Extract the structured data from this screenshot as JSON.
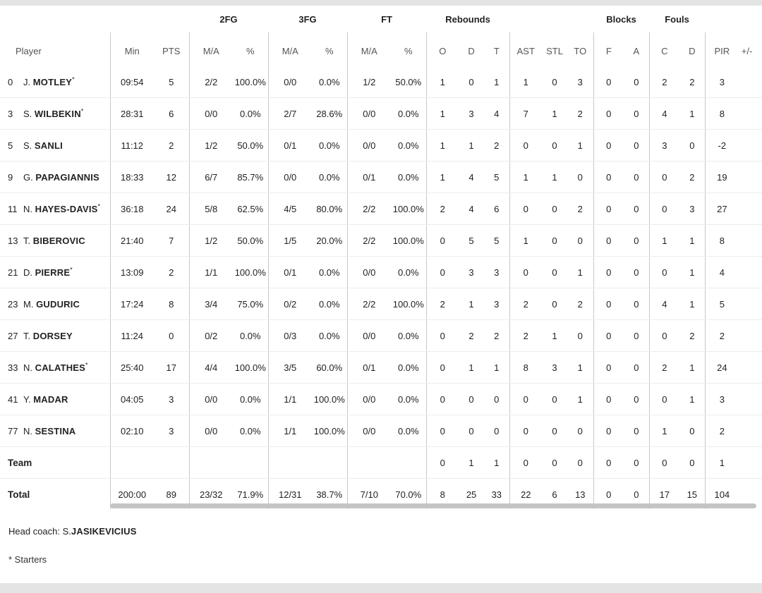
{
  "groups": {
    "fg2": "2FG",
    "fg3": "3FG",
    "ft": "FT",
    "rebounds": "Rebounds",
    "blocks": "Blocks",
    "fouls": "Fouls"
  },
  "columns": {
    "player": "Player",
    "min": "Min",
    "pts": "PTS",
    "fg2_ma": "M/A",
    "fg2_pct": "%",
    "fg3_ma": "M/A",
    "fg3_pct": "%",
    "ft_ma": "M/A",
    "ft_pct": "%",
    "reb_o": "O",
    "reb_d": "D",
    "reb_t": "T",
    "ast": "AST",
    "stl": "STL",
    "to": "TO",
    "blk_f": "F",
    "blk_a": "A",
    "foul_c": "C",
    "foul_d": "D",
    "pir": "PIR",
    "plus_minus": "+/-"
  },
  "players": [
    {
      "num": "0",
      "init": "J.",
      "last": "MOTLEY",
      "star": "*",
      "min": "09:54",
      "pts": "5",
      "fg2_ma": "2/2",
      "fg2_pct": "100.0%",
      "fg3_ma": "0/0",
      "fg3_pct": "0.0%",
      "ft_ma": "1/2",
      "ft_pct": "50.0%",
      "o": "1",
      "d": "0",
      "t": "1",
      "ast": "1",
      "stl": "0",
      "to": "3",
      "bf": "0",
      "ba": "0",
      "fc": "2",
      "fd": "2",
      "pir": "3"
    },
    {
      "num": "3",
      "init": "S.",
      "last": "WILBEKIN",
      "star": "*",
      "min": "28:31",
      "pts": "6",
      "fg2_ma": "0/0",
      "fg2_pct": "0.0%",
      "fg3_ma": "2/7",
      "fg3_pct": "28.6%",
      "ft_ma": "0/0",
      "ft_pct": "0.0%",
      "o": "1",
      "d": "3",
      "t": "4",
      "ast": "7",
      "stl": "1",
      "to": "2",
      "bf": "0",
      "ba": "0",
      "fc": "4",
      "fd": "1",
      "pir": "8"
    },
    {
      "num": "5",
      "init": "S.",
      "last": "SANLI",
      "star": "",
      "min": "11:12",
      "pts": "2",
      "fg2_ma": "1/2",
      "fg2_pct": "50.0%",
      "fg3_ma": "0/1",
      "fg3_pct": "0.0%",
      "ft_ma": "0/0",
      "ft_pct": "0.0%",
      "o": "1",
      "d": "1",
      "t": "2",
      "ast": "0",
      "stl": "0",
      "to": "1",
      "bf": "0",
      "ba": "0",
      "fc": "3",
      "fd": "0",
      "pir": "-2"
    },
    {
      "num": "9",
      "init": "G.",
      "last": "PAPAGIANNIS",
      "star": "",
      "min": "18:33",
      "pts": "12",
      "fg2_ma": "6/7",
      "fg2_pct": "85.7%",
      "fg3_ma": "0/0",
      "fg3_pct": "0.0%",
      "ft_ma": "0/1",
      "ft_pct": "0.0%",
      "o": "1",
      "d": "4",
      "t": "5",
      "ast": "1",
      "stl": "1",
      "to": "0",
      "bf": "0",
      "ba": "0",
      "fc": "0",
      "fd": "2",
      "pir": "19"
    },
    {
      "num": "11",
      "init": "N.",
      "last": "HAYES-DAVIS",
      "star": "*",
      "min": "36:18",
      "pts": "24",
      "fg2_ma": "5/8",
      "fg2_pct": "62.5%",
      "fg3_ma": "4/5",
      "fg3_pct": "80.0%",
      "ft_ma": "2/2",
      "ft_pct": "100.0%",
      "o": "2",
      "d": "4",
      "t": "6",
      "ast": "0",
      "stl": "0",
      "to": "2",
      "bf": "0",
      "ba": "0",
      "fc": "0",
      "fd": "3",
      "pir": "27"
    },
    {
      "num": "13",
      "init": "T.",
      "last": "BIBEROVIC",
      "star": "",
      "min": "21:40",
      "pts": "7",
      "fg2_ma": "1/2",
      "fg2_pct": "50.0%",
      "fg3_ma": "1/5",
      "fg3_pct": "20.0%",
      "ft_ma": "2/2",
      "ft_pct": "100.0%",
      "o": "0",
      "d": "5",
      "t": "5",
      "ast": "1",
      "stl": "0",
      "to": "0",
      "bf": "0",
      "ba": "0",
      "fc": "1",
      "fd": "1",
      "pir": "8"
    },
    {
      "num": "21",
      "init": "D.",
      "last": "PIERRE",
      "star": "*",
      "min": "13:09",
      "pts": "2",
      "fg2_ma": "1/1",
      "fg2_pct": "100.0%",
      "fg3_ma": "0/1",
      "fg3_pct": "0.0%",
      "ft_ma": "0/0",
      "ft_pct": "0.0%",
      "o": "0",
      "d": "3",
      "t": "3",
      "ast": "0",
      "stl": "0",
      "to": "1",
      "bf": "0",
      "ba": "0",
      "fc": "0",
      "fd": "1",
      "pir": "4"
    },
    {
      "num": "23",
      "init": "M.",
      "last": "GUDURIC",
      "star": "",
      "min": "17:24",
      "pts": "8",
      "fg2_ma": "3/4",
      "fg2_pct": "75.0%",
      "fg3_ma": "0/2",
      "fg3_pct": "0.0%",
      "ft_ma": "2/2",
      "ft_pct": "100.0%",
      "o": "2",
      "d": "1",
      "t": "3",
      "ast": "2",
      "stl": "0",
      "to": "2",
      "bf": "0",
      "ba": "0",
      "fc": "4",
      "fd": "1",
      "pir": "5"
    },
    {
      "num": "27",
      "init": "T.",
      "last": "DORSEY",
      "star": "",
      "min": "11:24",
      "pts": "0",
      "fg2_ma": "0/2",
      "fg2_pct": "0.0%",
      "fg3_ma": "0/3",
      "fg3_pct": "0.0%",
      "ft_ma": "0/0",
      "ft_pct": "0.0%",
      "o": "0",
      "d": "2",
      "t": "2",
      "ast": "2",
      "stl": "1",
      "to": "0",
      "bf": "0",
      "ba": "0",
      "fc": "0",
      "fd": "2",
      "pir": "2"
    },
    {
      "num": "33",
      "init": "N.",
      "last": "CALATHES",
      "star": "*",
      "min": "25:40",
      "pts": "17",
      "fg2_ma": "4/4",
      "fg2_pct": "100.0%",
      "fg3_ma": "3/5",
      "fg3_pct": "60.0%",
      "ft_ma": "0/1",
      "ft_pct": "0.0%",
      "o": "0",
      "d": "1",
      "t": "1",
      "ast": "8",
      "stl": "3",
      "to": "1",
      "bf": "0",
      "ba": "0",
      "fc": "2",
      "fd": "1",
      "pir": "24"
    },
    {
      "num": "41",
      "init": "Y.",
      "last": "MADAR",
      "star": "",
      "min": "04:05",
      "pts": "3",
      "fg2_ma": "0/0",
      "fg2_pct": "0.0%",
      "fg3_ma": "1/1",
      "fg3_pct": "100.0%",
      "ft_ma": "0/0",
      "ft_pct": "0.0%",
      "o": "0",
      "d": "0",
      "t": "0",
      "ast": "0",
      "stl": "0",
      "to": "1",
      "bf": "0",
      "ba": "0",
      "fc": "0",
      "fd": "1",
      "pir": "3"
    },
    {
      "num": "77",
      "init": "N.",
      "last": "SESTINA",
      "star": "",
      "min": "02:10",
      "pts": "3",
      "fg2_ma": "0/0",
      "fg2_pct": "0.0%",
      "fg3_ma": "1/1",
      "fg3_pct": "100.0%",
      "ft_ma": "0/0",
      "ft_pct": "0.0%",
      "o": "0",
      "d": "0",
      "t": "0",
      "ast": "0",
      "stl": "0",
      "to": "0",
      "bf": "0",
      "ba": "0",
      "fc": "1",
      "fd": "0",
      "pir": "2"
    }
  ],
  "team": {
    "label": "Team",
    "o": "0",
    "d": "1",
    "t": "1",
    "ast": "0",
    "stl": "0",
    "to": "0",
    "bf": "0",
    "ba": "0",
    "fc": "0",
    "fd": "0",
    "pir": "1"
  },
  "total": {
    "label": "Total",
    "min": "200:00",
    "pts": "89",
    "fg2_ma": "23/32",
    "fg2_pct": "71.9%",
    "fg3_ma": "12/31",
    "fg3_pct": "38.7%",
    "ft_ma": "7/10",
    "ft_pct": "70.0%",
    "o": "8",
    "d": "25",
    "t": "33",
    "ast": "22",
    "stl": "6",
    "to": "13",
    "bf": "0",
    "ba": "0",
    "fc": "17",
    "fd": "15",
    "pir": "104"
  },
  "footer": {
    "coach_label": "Head coach:",
    "coach_init": "S.",
    "coach_last": "JASIKEVICIUS",
    "starters_note": "* Starters"
  }
}
